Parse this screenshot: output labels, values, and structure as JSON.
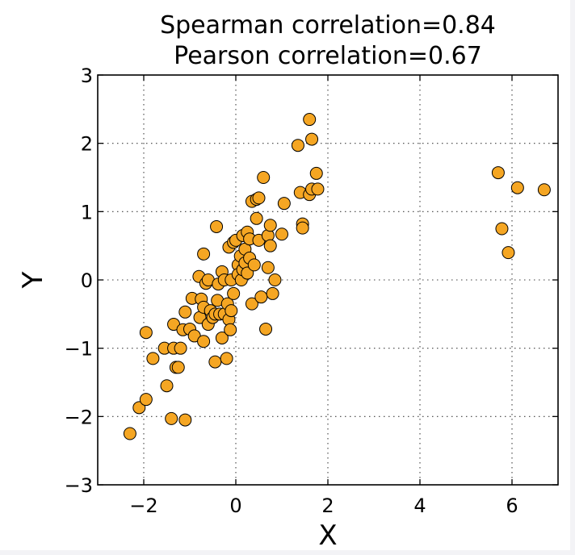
{
  "colors": {
    "marker": "#f5a623",
    "edge": "#000000",
    "background": "#ffffff"
  },
  "chart_data": {
    "type": "scatter",
    "title_lines": [
      "Spearman correlation=0.84",
      "Pearson correlation=0.67"
    ],
    "xlabel": "X",
    "ylabel": "Y",
    "xlim": [
      -3,
      7
    ],
    "ylim": [
      -3,
      3
    ],
    "xticks": [
      -2,
      0,
      2,
      4,
      6
    ],
    "xtick_labels": [
      "−2",
      "0",
      "2",
      "4",
      "6"
    ],
    "yticks": [
      -3,
      -2,
      -1,
      0,
      1,
      2,
      3
    ],
    "ytick_labels": [
      "−3",
      "−2",
      "−1",
      "0",
      "1",
      "2",
      "3"
    ],
    "grid": true,
    "points": [
      [
        -2.3,
        -2.25
      ],
      [
        -2.1,
        -1.87
      ],
      [
        -1.95,
        -1.75
      ],
      [
        -1.95,
        -0.77
      ],
      [
        -1.8,
        -1.15
      ],
      [
        -1.55,
        -1.0
      ],
      [
        -1.5,
        -1.55
      ],
      [
        -1.4,
        -2.03
      ],
      [
        -1.35,
        -0.65
      ],
      [
        -1.35,
        -1.0
      ],
      [
        -1.3,
        -1.28
      ],
      [
        -1.25,
        -1.28
      ],
      [
        -1.2,
        -1.0
      ],
      [
        -1.15,
        -0.73
      ],
      [
        -1.1,
        -2.05
      ],
      [
        -1.1,
        -0.47
      ],
      [
        -1.0,
        -0.72
      ],
      [
        -0.95,
        -0.27
      ],
      [
        -0.9,
        -0.82
      ],
      [
        -0.8,
        0.05
      ],
      [
        -0.78,
        -0.55
      ],
      [
        -0.75,
        -0.28
      ],
      [
        -0.7,
        -0.4
      ],
      [
        -0.7,
        0.38
      ],
      [
        -0.7,
        -0.9
      ],
      [
        -0.65,
        -0.05
      ],
      [
        -0.6,
        -0.65
      ],
      [
        -0.6,
        0.0
      ],
      [
        -0.55,
        -0.45
      ],
      [
        -0.5,
        -0.55
      ],
      [
        -0.45,
        -1.2
      ],
      [
        -0.45,
        -0.5
      ],
      [
        -0.42,
        0.78
      ],
      [
        -0.4,
        -0.3
      ],
      [
        -0.38,
        -0.06
      ],
      [
        -0.35,
        -0.5
      ],
      [
        -0.3,
        -0.85
      ],
      [
        -0.3,
        0.12
      ],
      [
        -0.25,
        -0.5
      ],
      [
        -0.25,
        0.0
      ],
      [
        -0.2,
        -1.15
      ],
      [
        -0.18,
        -0.35
      ],
      [
        -0.15,
        0.48
      ],
      [
        -0.15,
        -0.58
      ],
      [
        -0.12,
        -0.73
      ],
      [
        -0.1,
        -0.45
      ],
      [
        -0.1,
        0.0
      ],
      [
        -0.05,
        -0.2
      ],
      [
        -0.05,
        0.55
      ],
      [
        0.0,
        0.58
      ],
      [
        0.05,
        0.22
      ],
      [
        0.05,
        0.08
      ],
      [
        0.1,
        0.35
      ],
      [
        0.12,
        0.0
      ],
      [
        0.15,
        0.65
      ],
      [
        0.15,
        0.15
      ],
      [
        0.2,
        0.45
      ],
      [
        0.2,
        0.25
      ],
      [
        0.25,
        0.7
      ],
      [
        0.25,
        0.1
      ],
      [
        0.3,
        0.6
      ],
      [
        0.3,
        0.32
      ],
      [
        0.35,
        -0.35
      ],
      [
        0.35,
        1.15
      ],
      [
        0.4,
        0.22
      ],
      [
        0.45,
        1.18
      ],
      [
        0.45,
        0.9
      ],
      [
        0.5,
        0.58
      ],
      [
        0.5,
        1.2
      ],
      [
        0.55,
        -0.25
      ],
      [
        0.6,
        1.5
      ],
      [
        0.65,
        -0.72
      ],
      [
        0.7,
        0.65
      ],
      [
        0.7,
        0.18
      ],
      [
        0.75,
        0.8
      ],
      [
        0.75,
        0.5
      ],
      [
        0.8,
        -0.2
      ],
      [
        0.85,
        0.0
      ],
      [
        1.0,
        0.67
      ],
      [
        1.05,
        1.12
      ],
      [
        1.35,
        1.97
      ],
      [
        1.4,
        1.28
      ],
      [
        1.45,
        0.82
      ],
      [
        1.45,
        0.76
      ],
      [
        1.6,
        1.25
      ],
      [
        1.6,
        2.35
      ],
      [
        1.65,
        2.06
      ],
      [
        1.65,
        1.33
      ],
      [
        1.75,
        1.56
      ],
      [
        1.78,
        1.33
      ],
      [
        5.7,
        1.57
      ],
      [
        5.78,
        0.75
      ],
      [
        5.92,
        0.4
      ],
      [
        6.12,
        1.35
      ],
      [
        6.7,
        1.32
      ]
    ]
  }
}
